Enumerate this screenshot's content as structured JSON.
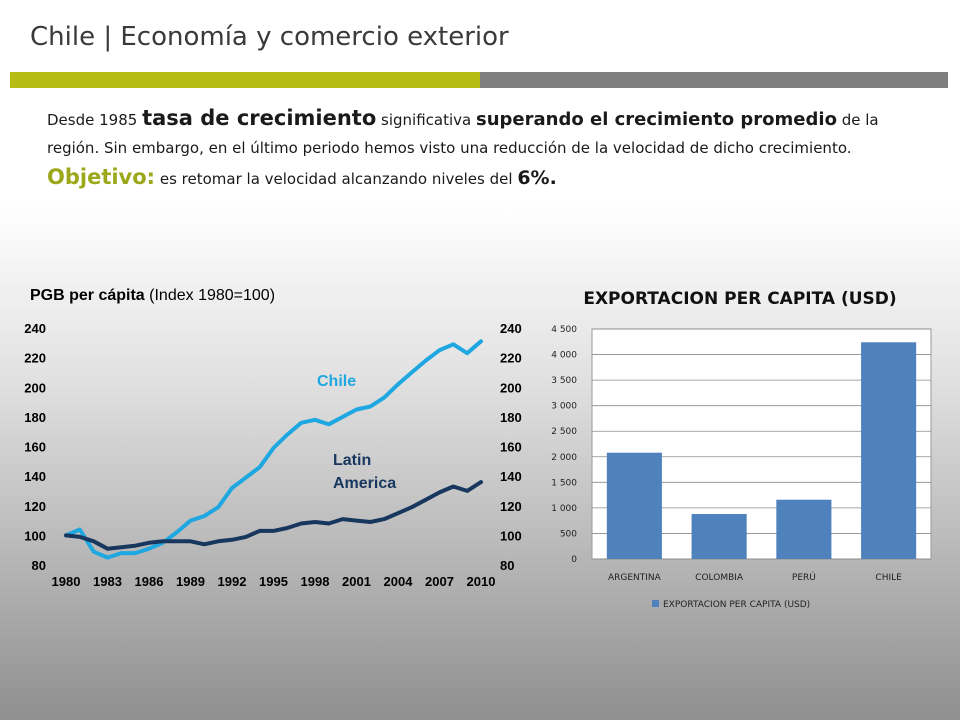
{
  "title": "Chile | Economía y comercio exterior",
  "intro": {
    "p1": "Desde 1985 ",
    "p2": "tasa de crecimiento",
    "p3": " significativa ",
    "p4": "superando el crecimiento promedio",
    "p5": " de la región. Sin embargo, en el último periodo hemos visto una reducción de la velocidad de dicho crecimiento.",
    "obj_label": "Objetivo:",
    "obj_text": " es retomar la velocidad alcanzando niveles del ",
    "obj_value": "6%."
  },
  "colors": {
    "accent_green": "#b5bd14",
    "bar_gray": "#7f7f7f",
    "chile_line": "#1ea7e1",
    "latam_line": "#17375e",
    "bar_fill": "#4f81bd"
  },
  "chart_data": [
    {
      "type": "line",
      "title": "PGB per cápita",
      "subtitle": "(Index 1980=100)",
      "x": [
        1980,
        1981,
        1982,
        1983,
        1984,
        1985,
        1986,
        1987,
        1988,
        1989,
        1990,
        1991,
        1992,
        1993,
        1994,
        1995,
        1996,
        1997,
        1998,
        1999,
        2000,
        2001,
        2002,
        2003,
        2004,
        2005,
        2006,
        2007,
        2008,
        2009,
        2010
      ],
      "x_ticks": [
        "1980",
        "1983",
        "1986",
        "1989",
        "1992",
        "1995",
        "1998",
        "2001",
        "2004",
        "2007",
        "2010"
      ],
      "y_ticks": [
        "80",
        "100",
        "120",
        "140",
        "160",
        "180",
        "200",
        "220",
        "240"
      ],
      "ylim": [
        80,
        240
      ],
      "series": [
        {
          "name": "Chile",
          "color": "#1ea7e1",
          "values": [
            100,
            104,
            89,
            85,
            88,
            88,
            91,
            95,
            102,
            110,
            113,
            119,
            132,
            139,
            146,
            159,
            168,
            176,
            178,
            175,
            180,
            185,
            187,
            193,
            202,
            210,
            218,
            225,
            229,
            223,
            231
          ]
        },
        {
          "name": "Latin America",
          "color": "#17375e",
          "values": [
            100,
            99,
            96,
            91,
            92,
            93,
            95,
            96,
            96,
            96,
            94,
            96,
            97,
            99,
            103,
            103,
            105,
            108,
            109,
            108,
            111,
            110,
            109,
            111,
            115,
            119,
            124,
            129,
            133,
            130,
            136
          ]
        }
      ],
      "labels": {
        "chile": "Chile",
        "latam_1": "Latin",
        "latam_2": "America"
      }
    },
    {
      "type": "bar",
      "title": "EXPORTACION PER CAPITA (USD)",
      "categories": [
        "ARGENTINA",
        "COLOMBIA",
        "PERÚ",
        "CHILE"
      ],
      "values": [
        2080,
        880,
        1160,
        4240
      ],
      "ylim": [
        0,
        4500
      ],
      "y_ticks": [
        "0",
        "500",
        "1 000",
        "1 500",
        "2 000",
        "2 500",
        "3 000",
        "3 500",
        "4 000",
        "4 500"
      ],
      "legend": "EXPORTACION PER CAPITA (USD)",
      "legend_position": "bottom",
      "grid": true
    }
  ]
}
